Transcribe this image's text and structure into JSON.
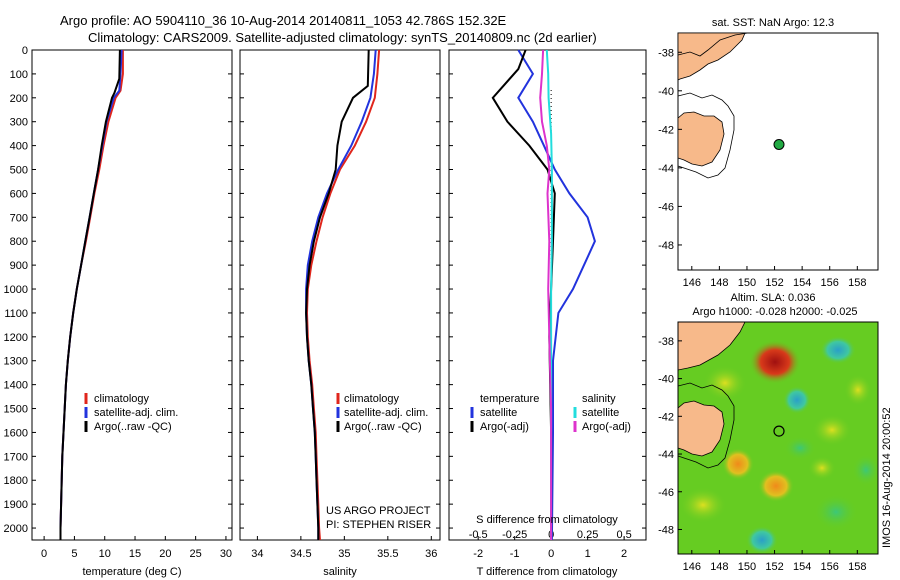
{
  "title": {
    "line1": "Argo profile: AO 5904110_36 10-Aug-2014 20140811_1053 42.786S 152.32E",
    "line2": "Climatology: CARS2009. Satellite-adjusted climatology: synTS_20140809.nc (2d earlier)"
  },
  "side_text": "IMOS 16-Aug-2014 20:00:52",
  "colors": {
    "climatology": "#e0261c",
    "satellite": "#2233dd",
    "argo": "#000000",
    "cyan": "#22dddd",
    "magenta": "#dd33cc",
    "land": "#f7b98a",
    "marker": "#22aa44"
  },
  "chart_data": [
    {
      "type": "line",
      "xlabel": "temperature (deg C)",
      "ylabel": "",
      "xlim": [
        -2,
        31
      ],
      "ylim": [
        2050,
        0
      ],
      "xticks": [
        "0",
        "5",
        "10",
        "15",
        "20",
        "25",
        "30"
      ],
      "yticks": [
        "0",
        "100",
        "200",
        "300",
        "400",
        "500",
        "600",
        "700",
        "800",
        "900",
        "1000",
        "1100",
        "1200",
        "1300",
        "1400",
        "1500",
        "1600",
        "1700",
        "1800",
        "1900",
        "2000"
      ],
      "legend": [
        "climatology",
        "satellite-adj. clim.",
        "Argo(..raw -QC)"
      ],
      "series": [
        {
          "name": "climatology",
          "color": "#e0261c",
          "points": [
            [
              13,
              0
            ],
            [
              13,
              100
            ],
            [
              12.6,
              170
            ],
            [
              11.8,
              200
            ],
            [
              10.6,
              300
            ],
            [
              9.8,
              400
            ],
            [
              9.1,
              500
            ],
            [
              8.3,
              600
            ],
            [
              7.6,
              700
            ],
            [
              6.9,
              800
            ],
            [
              6.1,
              900
            ],
            [
              5.4,
              1000
            ],
            [
              4.8,
              1100
            ],
            [
              4.3,
              1200
            ],
            [
              3.9,
              1300
            ],
            [
              3.6,
              1400
            ],
            [
              3.4,
              1500
            ],
            [
              3.2,
              1600
            ],
            [
              3.0,
              1700
            ],
            [
              2.9,
              1800
            ],
            [
              2.8,
              1900
            ],
            [
              2.7,
              2000
            ],
            [
              2.7,
              2050
            ]
          ]
        },
        {
          "name": "satellite-adj. clim.",
          "color": "#2233dd",
          "points": [
            [
              12.8,
              0
            ],
            [
              12.6,
              100
            ],
            [
              12.4,
              170
            ],
            [
              11.5,
              200
            ],
            [
              10.3,
              300
            ],
            [
              9.6,
              400
            ],
            [
              8.9,
              500
            ],
            [
              8.2,
              600
            ],
            [
              7.5,
              700
            ],
            [
              6.8,
              800
            ],
            [
              6.1,
              900
            ],
            [
              5.4,
              1000
            ],
            [
              4.8,
              1100
            ],
            [
              4.3,
              1200
            ],
            [
              3.9,
              1300
            ],
            [
              3.6,
              1400
            ],
            [
              3.4,
              1500
            ],
            [
              3.2,
              1600
            ],
            [
              3.0,
              1700
            ],
            [
              2.9,
              1800
            ],
            [
              2.8,
              1900
            ],
            [
              2.7,
              2000
            ],
            [
              2.7,
              2050
            ]
          ]
        },
        {
          "name": "Argo(..raw -QC)",
          "color": "#000000",
          "points": [
            [
              12.5,
              0
            ],
            [
              12.4,
              120
            ],
            [
              11.6,
              180
            ],
            [
              11.2,
              200
            ],
            [
              10.2,
              300
            ],
            [
              9.5,
              400
            ],
            [
              8.9,
              500
            ],
            [
              8.2,
              600
            ],
            [
              7.5,
              700
            ],
            [
              6.8,
              800
            ],
            [
              6.1,
              900
            ],
            [
              5.4,
              1000
            ],
            [
              4.8,
              1100
            ],
            [
              4.3,
              1200
            ],
            [
              3.9,
              1300
            ],
            [
              3.6,
              1400
            ],
            [
              3.4,
              1500
            ],
            [
              3.2,
              1600
            ],
            [
              3.0,
              1700
            ],
            [
              2.9,
              1800
            ],
            [
              2.8,
              1900
            ],
            [
              2.7,
              2000
            ],
            [
              2.7,
              2050
            ]
          ]
        }
      ]
    },
    {
      "type": "line",
      "xlabel": "salinity",
      "xlim": [
        33.8,
        36.1
      ],
      "ylim": [
        2050,
        0
      ],
      "xticks": [
        "34",
        "34.5",
        "35",
        "35.5",
        "36"
      ],
      "legend": [
        "climatology",
        "satellite-adj. clim.",
        "Argo(..raw -QC)"
      ],
      "annotation": [
        "US ARGO PROJECT",
        "PI: STEPHEN RISER"
      ],
      "series": [
        {
          "name": "climatology",
          "color": "#e0261c",
          "points": [
            [
              35.4,
              0
            ],
            [
              35.38,
              100
            ],
            [
              35.35,
              200
            ],
            [
              35.25,
              300
            ],
            [
              35.12,
              400
            ],
            [
              34.95,
              500
            ],
            [
              34.84,
              600
            ],
            [
              34.75,
              700
            ],
            [
              34.68,
              800
            ],
            [
              34.62,
              900
            ],
            [
              34.58,
              1000
            ],
            [
              34.57,
              1100
            ],
            [
              34.58,
              1200
            ],
            [
              34.6,
              1300
            ],
            [
              34.63,
              1400
            ],
            [
              34.65,
              1500
            ],
            [
              34.67,
              1600
            ],
            [
              34.68,
              1700
            ],
            [
              34.69,
              1800
            ],
            [
              34.7,
              1900
            ],
            [
              34.71,
              2000
            ],
            [
              34.72,
              2050
            ]
          ]
        },
        {
          "name": "satellite-adj. clim.",
          "color": "#2233dd",
          "points": [
            [
              35.36,
              0
            ],
            [
              35.34,
              100
            ],
            [
              35.3,
              200
            ],
            [
              35.2,
              300
            ],
            [
              35.08,
              400
            ],
            [
              34.93,
              500
            ],
            [
              34.8,
              600
            ],
            [
              34.7,
              700
            ],
            [
              34.63,
              800
            ],
            [
              34.58,
              900
            ],
            [
              34.56,
              1000
            ],
            [
              34.56,
              1100
            ],
            [
              34.57,
              1200
            ],
            [
              34.59,
              1300
            ],
            [
              34.62,
              1400
            ],
            [
              34.64,
              1500
            ],
            [
              34.66,
              1600
            ],
            [
              34.67,
              1700
            ],
            [
              34.68,
              1800
            ],
            [
              34.69,
              1900
            ],
            [
              34.7,
              2000
            ],
            [
              34.7,
              2050
            ]
          ]
        },
        {
          "name": "Argo(..raw -QC)",
          "color": "#000000",
          "points": [
            [
              35.28,
              0
            ],
            [
              35.27,
              150
            ],
            [
              35.1,
              200
            ],
            [
              34.97,
              300
            ],
            [
              34.92,
              400
            ],
            [
              34.9,
              500
            ],
            [
              34.82,
              600
            ],
            [
              34.72,
              700
            ],
            [
              34.65,
              800
            ],
            [
              34.6,
              900
            ],
            [
              34.57,
              1000
            ],
            [
              34.56,
              1100
            ],
            [
              34.57,
              1200
            ],
            [
              34.59,
              1300
            ],
            [
              34.62,
              1400
            ],
            [
              34.64,
              1500
            ],
            [
              34.66,
              1600
            ],
            [
              34.67,
              1700
            ],
            [
              34.68,
              1800
            ],
            [
              34.69,
              1900
            ],
            [
              34.7,
              2000
            ],
            [
              34.7,
              2050
            ]
          ]
        }
      ]
    },
    {
      "type": "line",
      "xlabel": "T difference from climatology",
      "xlabel_top": "S difference from climatology",
      "xlim": [
        -2.8,
        2.6
      ],
      "ylim": [
        2050,
        0
      ],
      "xticks": [
        "-2",
        "-1",
        "0",
        "1",
        "2"
      ],
      "sticks": [
        "-0.5",
        "-0.25",
        "0",
        "0.25",
        "0.5"
      ],
      "legend_left": {
        "header": "temperature",
        "items": [
          "satellite",
          "Argo(-adj)"
        ]
      },
      "legend_right": {
        "header": "salinity",
        "items": [
          "satellite",
          "Argo(-adj)"
        ]
      },
      "series": [
        {
          "name": "T satellite",
          "color": "#2233dd",
          "points": [
            [
              -0.9,
              0
            ],
            [
              -0.5,
              100
            ],
            [
              -0.9,
              200
            ],
            [
              -0.5,
              300
            ],
            [
              -0.2,
              400
            ],
            [
              0.1,
              500
            ],
            [
              0.5,
              600
            ],
            [
              1.0,
              700
            ],
            [
              1.2,
              800
            ],
            [
              0.9,
              900
            ],
            [
              0.6,
              1000
            ],
            [
              0.2,
              1100
            ],
            [
              0.05,
              1300
            ],
            [
              0.05,
              1600
            ],
            [
              0.02,
              2050
            ]
          ]
        },
        {
          "name": "T Argo(-adj)",
          "color": "#000000",
          "points": [
            [
              -0.7,
              0
            ],
            [
              -0.9,
              80
            ],
            [
              -1.6,
              200
            ],
            [
              -1.2,
              300
            ],
            [
              -0.6,
              400
            ],
            [
              -0.1,
              500
            ],
            [
              0.1,
              600
            ],
            [
              0.05,
              800
            ],
            [
              0.0,
              1000
            ],
            [
              -0.05,
              1200
            ],
            [
              0.0,
              1600
            ],
            [
              0.0,
              2050
            ]
          ]
        },
        {
          "name": "S satellite",
          "color": "#22dddd",
          "points": [
            [
              -0.12,
              0
            ],
            [
              -0.08,
              100
            ],
            [
              -0.07,
              200
            ],
            [
              0.0,
              350
            ],
            [
              0.02,
              500
            ],
            [
              0.02,
              800
            ],
            [
              0.0,
              1000
            ],
            [
              0.0,
              1500
            ],
            [
              0.0,
              2050
            ]
          ]
        },
        {
          "name": "S Argo(-adj)",
          "color": "#dd33cc",
          "points": [
            [
              -0.22,
              0
            ],
            [
              -0.25,
              100
            ],
            [
              -0.3,
              200
            ],
            [
              -0.25,
              300
            ],
            [
              -0.12,
              400
            ],
            [
              -0.05,
              500
            ],
            [
              -0.1,
              600
            ],
            [
              -0.05,
              800
            ],
            [
              -0.08,
              1000
            ],
            [
              -0.05,
              1200
            ],
            [
              0.0,
              1500
            ],
            [
              0.0,
              2050
            ]
          ]
        }
      ]
    },
    {
      "type": "map",
      "title": "sat. SST: NaN Argo: 12.3",
      "xticks": [
        "146",
        "148",
        "150",
        "152",
        "154",
        "156",
        "158"
      ],
      "yticks": [
        "-38",
        "-40",
        "-42",
        "-44",
        "-46",
        "-48"
      ],
      "xlim": [
        145,
        159.5
      ],
      "ylim": [
        -37,
        -49.3
      ],
      "argo_position": [
        152.32,
        -42.786
      ]
    },
    {
      "type": "heatmap",
      "title_line1": "Altim. SLA: 0.036",
      "title_line2": "Argo h1000: -0.028 h2000: -0.025",
      "xticks": [
        "146",
        "148",
        "150",
        "152",
        "154",
        "156",
        "158"
      ],
      "yticks": [
        "-38",
        "-40",
        "-42",
        "-44",
        "-46",
        "-48"
      ],
      "xlim": [
        145,
        159.5
      ],
      "ylim": [
        -37,
        -49.3
      ],
      "argo_position": [
        152.32,
        -42.786
      ]
    }
  ]
}
